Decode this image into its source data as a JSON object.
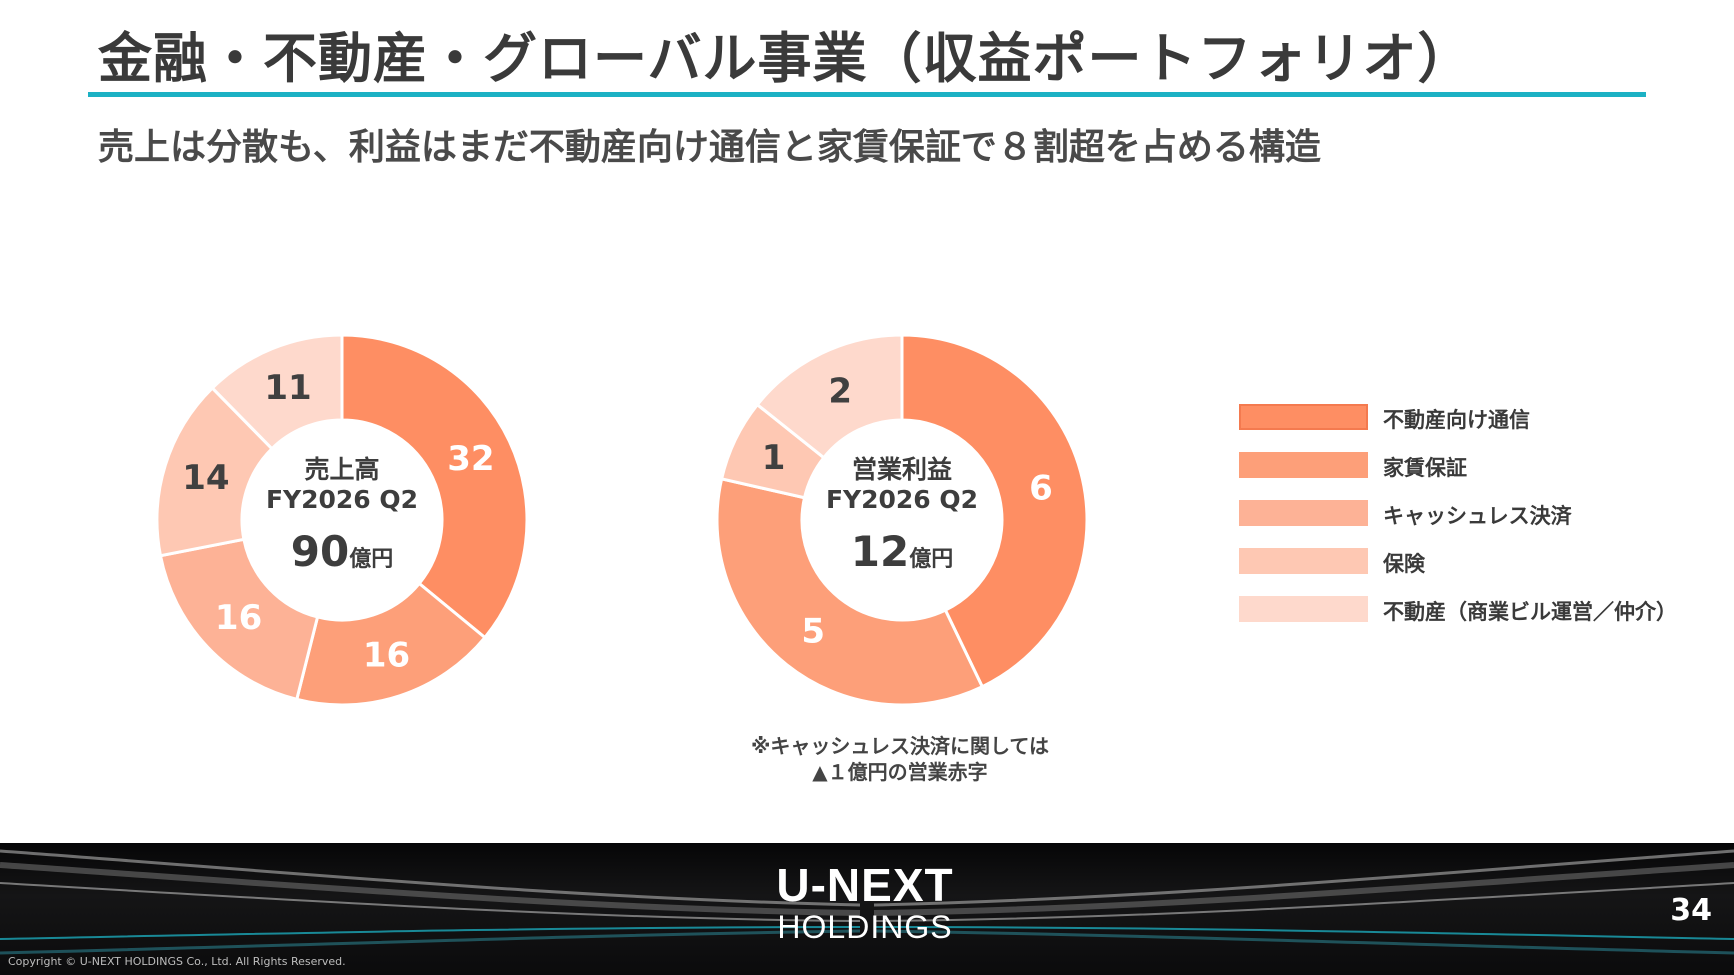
{
  "header": {
    "title": "金融・不動産・グローバル事業（収益ポートフォリオ）",
    "subtitle": "売上は分散も、利益はまだ不動産向け通信と家賃保証で８割超を占める構造"
  },
  "colors": {
    "accent_rule": "#1cb1c4",
    "segments": [
      "#fe8e63",
      "#fd9f79",
      "#fdb296",
      "#fec8b3",
      "#fed9cc"
    ]
  },
  "chart_data": [
    {
      "type": "pie",
      "variant": "donut",
      "center": {
        "name": "売上高",
        "period": "FY2026 Q2",
        "total": "90",
        "unit": "億円"
      },
      "categories": [
        "不動産向け通信",
        "家賃保証",
        "キャッシュレス決済",
        "保険",
        "不動産（商業ビル運営／仲介）"
      ],
      "values": [
        32,
        16,
        16,
        14,
        11
      ]
    },
    {
      "type": "pie",
      "variant": "donut",
      "center": {
        "name": "営業利益",
        "period": "FY2026 Q2",
        "total": "12",
        "unit": "億円"
      },
      "categories": [
        "不動産向け通信",
        "家賃保証",
        "キャッシュレス決済",
        "保険",
        "不動産（商業ビル運営／仲介）"
      ],
      "values": [
        6,
        5,
        0,
        1,
        2
      ]
    }
  ],
  "legend": {
    "placement": "right",
    "items": [
      "不動産向け通信",
      "家賃保証",
      "キャッシュレス決済",
      "保険",
      "不動産（商業ビル運営／仲介）"
    ]
  },
  "footnote": {
    "line1": "※キャッシュレス決済に関しては",
    "line2": "▲１億円の営業赤字"
  },
  "footer": {
    "logo_main": "U-NEXT",
    "logo_sub": "HOLDINGS",
    "page_number": "34",
    "copyright": "Copyright © U-NEXT HOLDINGS Co., Ltd. All Rights Reserved."
  }
}
